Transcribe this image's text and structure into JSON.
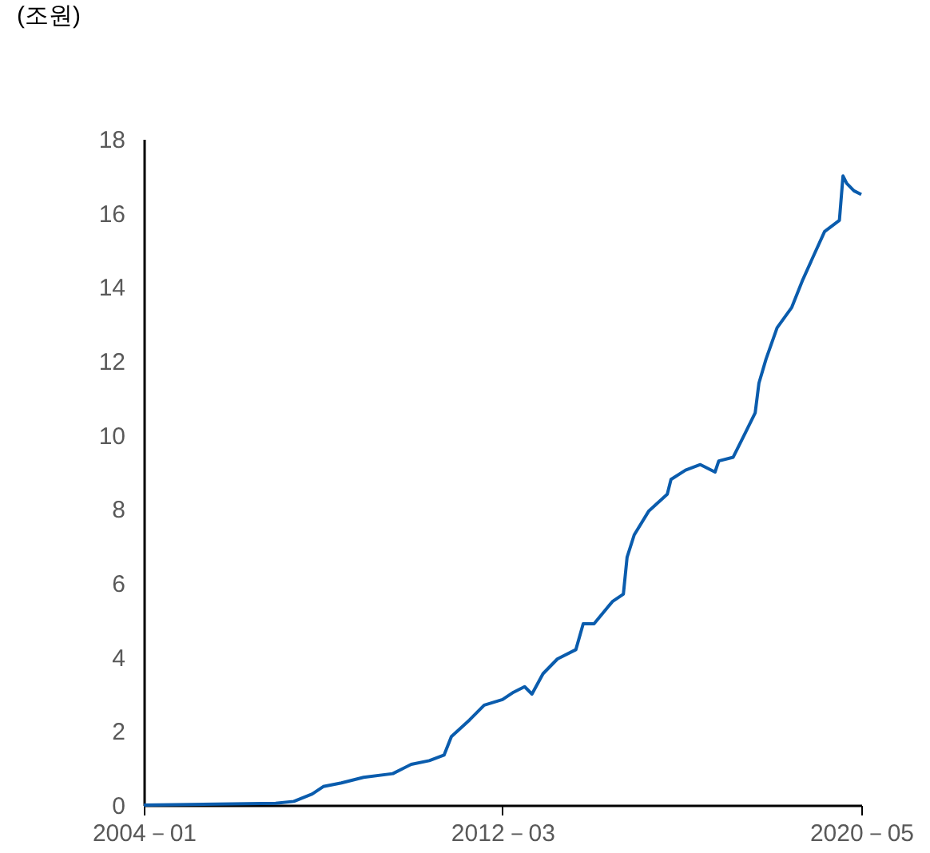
{
  "chart_data": {
    "type": "line",
    "ylabel": "(조원)",
    "x": [
      "2004-01",
      "2007-01",
      "2007-06",
      "2007-11",
      "2008-02",
      "2008-07",
      "2009-01",
      "2009-09",
      "2010-02",
      "2010-07",
      "2010-11",
      "2011-01",
      "2011-06",
      "2011-10",
      "2012-03",
      "2012-06",
      "2012-09",
      "2012-11",
      "2013-02",
      "2013-06",
      "2013-11",
      "2014-01",
      "2014-04",
      "2014-09",
      "2014-12",
      "2015-01",
      "2015-03",
      "2015-07",
      "2015-12",
      "2016-01",
      "2016-05",
      "2016-09",
      "2017-01",
      "2017-02",
      "2017-06",
      "2017-09",
      "2017-12",
      "2018-01",
      "2018-03",
      "2018-06",
      "2018-10",
      "2019-01",
      "2019-04",
      "2019-07",
      "2019-11",
      "2019-12",
      "2020-01",
      "2020-03",
      "2020-05"
    ],
    "series": [
      {
        "color": "#0a5cad",
        "values": [
          0,
          0.05,
          0.1,
          0.3,
          0.5,
          0.6,
          0.75,
          0.85,
          1.1,
          1.2,
          1.35,
          1.85,
          2.3,
          2.7,
          2.85,
          3.05,
          3.2,
          3.0,
          3.55,
          3.95,
          4.2,
          4.9,
          4.9,
          5.5,
          5.7,
          6.7,
          7.3,
          7.95,
          8.4,
          8.8,
          9.05,
          9.2,
          9.0,
          9.3,
          9.4,
          10.0,
          10.6,
          11.4,
          12.05,
          12.9,
          13.45,
          14.2,
          14.85,
          15.5,
          15.8,
          17.0,
          16.8,
          16.6,
          16.5
        ]
      }
    ],
    "xlim": [
      "2004-01",
      "2020-05"
    ],
    "xticks": [
      {
        "value": "2004-01",
        "label": "2004－01"
      },
      {
        "value": "2012-03",
        "label": "2012－03"
      },
      {
        "value": "2020-05",
        "label": "2020－05"
      }
    ],
    "ylim": [
      0,
      18
    ],
    "yticks": [
      0,
      2,
      4,
      6,
      8,
      10,
      12,
      14,
      16,
      18
    ],
    "grid": false,
    "marker": "none",
    "line_style": "solid"
  }
}
